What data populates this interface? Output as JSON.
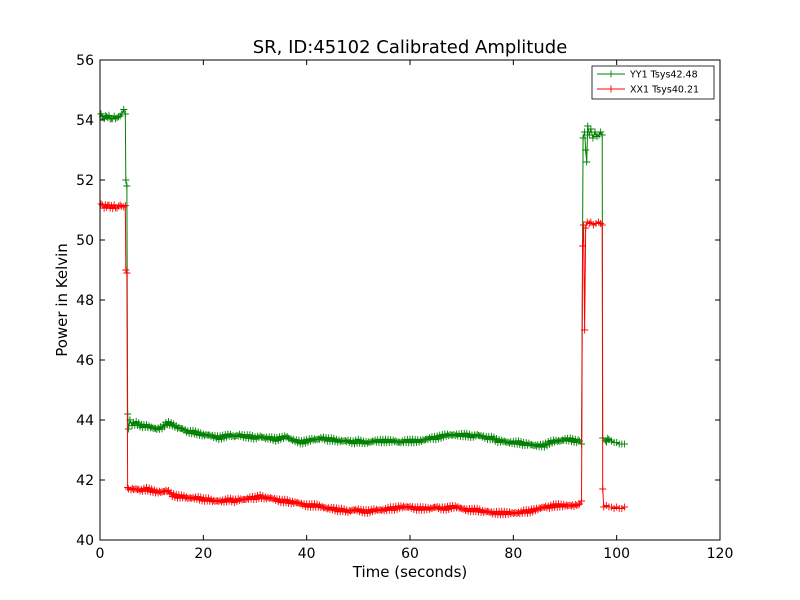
{
  "chart_data": {
    "type": "line",
    "title": "SR, ID:45102 Calibrated Amplitude",
    "xlabel": "Time (seconds)",
    "ylabel": "Power in Kelvin",
    "xlim": [
      0,
      120
    ],
    "ylim": [
      40,
      56
    ],
    "xticks": [
      0,
      20,
      40,
      60,
      80,
      100,
      120
    ],
    "yticks": [
      40,
      42,
      44,
      46,
      48,
      50,
      52,
      54,
      56
    ],
    "grid": false,
    "legend_position": "top-right",
    "marker": "plus",
    "series": [
      {
        "name": "YY1 Tsys42.48",
        "color": "#008000",
        "points": [
          [
            0.2,
            54.15
          ],
          [
            0.8,
            54.1
          ],
          [
            1.5,
            54.12
          ],
          [
            2.2,
            54.05
          ],
          [
            3.0,
            54.1
          ],
          [
            3.6,
            54.05
          ],
          [
            4.2,
            54.2
          ],
          [
            4.6,
            54.35
          ],
          [
            4.9,
            54.2
          ],
          [
            5.0,
            52.0
          ],
          [
            5.2,
            51.8
          ],
          [
            5.35,
            44.2
          ],
          [
            5.5,
            43.7
          ],
          [
            5.8,
            44.0
          ],
          [
            6.2,
            43.85
          ],
          [
            7,
            43.9
          ],
          [
            8,
            43.8
          ],
          [
            9,
            43.8
          ],
          [
            10,
            43.75
          ],
          [
            11,
            43.7
          ],
          [
            12,
            43.75
          ],
          [
            13,
            43.9
          ],
          [
            14,
            43.85
          ],
          [
            15,
            43.75
          ],
          [
            16,
            43.7
          ],
          [
            17,
            43.6
          ],
          [
            18,
            43.6
          ],
          [
            19,
            43.55
          ],
          [
            20,
            43.5
          ],
          [
            21,
            43.5
          ],
          [
            22,
            43.45
          ],
          [
            23,
            43.4
          ],
          [
            24,
            43.45
          ],
          [
            25,
            43.5
          ],
          [
            26,
            43.45
          ],
          [
            27,
            43.5
          ],
          [
            28,
            43.45
          ],
          [
            29,
            43.45
          ],
          [
            30,
            43.4
          ],
          [
            31,
            43.45
          ],
          [
            32,
            43.4
          ],
          [
            33,
            43.4
          ],
          [
            34,
            43.35
          ],
          [
            35,
            43.4
          ],
          [
            36,
            43.45
          ],
          [
            37,
            43.35
          ],
          [
            38,
            43.3
          ],
          [
            39,
            43.25
          ],
          [
            40,
            43.3
          ],
          [
            41,
            43.35
          ],
          [
            42,
            43.35
          ],
          [
            43,
            43.4
          ],
          [
            44,
            43.35
          ],
          [
            45,
            43.35
          ],
          [
            46,
            43.3
          ],
          [
            47,
            43.3
          ],
          [
            48,
            43.3
          ],
          [
            49,
            43.25
          ],
          [
            50,
            43.3
          ],
          [
            51,
            43.25
          ],
          [
            52,
            43.25
          ],
          [
            53,
            43.3
          ],
          [
            54,
            43.3
          ],
          [
            55,
            43.3
          ],
          [
            56,
            43.3
          ],
          [
            57,
            43.3
          ],
          [
            58,
            43.25
          ],
          [
            59,
            43.3
          ],
          [
            60,
            43.3
          ],
          [
            61,
            43.3
          ],
          [
            62,
            43.3
          ],
          [
            63,
            43.35
          ],
          [
            64,
            43.4
          ],
          [
            65,
            43.4
          ],
          [
            66,
            43.45
          ],
          [
            67,
            43.5
          ],
          [
            68,
            43.5
          ],
          [
            69,
            43.5
          ],
          [
            70,
            43.5
          ],
          [
            71,
            43.5
          ],
          [
            72,
            43.45
          ],
          [
            73,
            43.5
          ],
          [
            74,
            43.45
          ],
          [
            75,
            43.4
          ],
          [
            76,
            43.4
          ],
          [
            77,
            43.3
          ],
          [
            78,
            43.3
          ],
          [
            79,
            43.25
          ],
          [
            80,
            43.25
          ],
          [
            81,
            43.25
          ],
          [
            82,
            43.2
          ],
          [
            83,
            43.2
          ],
          [
            84,
            43.15
          ],
          [
            85,
            43.15
          ],
          [
            86,
            43.15
          ],
          [
            87,
            43.25
          ],
          [
            88,
            43.3
          ],
          [
            89,
            43.3
          ],
          [
            90,
            43.35
          ],
          [
            91,
            43.35
          ],
          [
            92,
            43.3
          ],
          [
            92.8,
            43.3
          ],
          [
            93.2,
            43.2
          ],
          [
            93.5,
            53.4
          ],
          [
            93.8,
            53.6
          ],
          [
            94.0,
            53.0
          ],
          [
            94.2,
            52.6
          ],
          [
            94.4,
            53.8
          ],
          [
            94.7,
            53.5
          ],
          [
            95,
            53.7
          ],
          [
            95.4,
            53.4
          ],
          [
            95.8,
            53.6
          ],
          [
            96.2,
            53.45
          ],
          [
            96.6,
            53.5
          ],
          [
            96.9,
            53.6
          ],
          [
            97.2,
            53.5
          ],
          [
            97.3,
            43.4
          ],
          [
            97.8,
            43.3
          ],
          [
            98.5,
            43.35
          ],
          [
            99,
            43.3
          ],
          [
            99.5,
            43.25
          ],
          [
            100,
            43.25
          ],
          [
            100.5,
            43.2
          ],
          [
            101,
            43.2
          ],
          [
            101.5,
            43.2
          ]
        ]
      },
      {
        "name": "XX1 Tsys40.21",
        "color": "#ff0000",
        "points": [
          [
            0.2,
            51.15
          ],
          [
            0.8,
            51.1
          ],
          [
            1.5,
            51.15
          ],
          [
            2.2,
            51.1
          ],
          [
            3.0,
            51.12
          ],
          [
            3.6,
            51.1
          ],
          [
            4.2,
            51.12
          ],
          [
            4.6,
            51.1
          ],
          [
            4.9,
            51.15
          ],
          [
            5.0,
            49.0
          ],
          [
            5.2,
            48.9
          ],
          [
            5.35,
            41.75
          ],
          [
            5.5,
            41.7
          ],
          [
            6,
            41.7
          ],
          [
            7,
            41.7
          ],
          [
            8,
            41.65
          ],
          [
            9,
            41.7
          ],
          [
            10,
            41.65
          ],
          [
            11,
            41.6
          ],
          [
            12,
            41.6
          ],
          [
            13,
            41.65
          ],
          [
            14,
            41.5
          ],
          [
            15,
            41.45
          ],
          [
            16,
            41.45
          ],
          [
            17,
            41.4
          ],
          [
            18,
            41.4
          ],
          [
            19,
            41.4
          ],
          [
            20,
            41.35
          ],
          [
            21,
            41.35
          ],
          [
            22,
            41.3
          ],
          [
            23,
            41.3
          ],
          [
            24,
            41.3
          ],
          [
            25,
            41.35
          ],
          [
            26,
            41.3
          ],
          [
            27,
            41.35
          ],
          [
            28,
            41.35
          ],
          [
            29,
            41.4
          ],
          [
            30,
            41.4
          ],
          [
            31,
            41.45
          ],
          [
            32,
            41.4
          ],
          [
            33,
            41.4
          ],
          [
            34,
            41.35
          ],
          [
            35,
            41.3
          ],
          [
            36,
            41.3
          ],
          [
            37,
            41.25
          ],
          [
            38,
            41.25
          ],
          [
            39,
            41.2
          ],
          [
            40,
            41.15
          ],
          [
            41,
            41.15
          ],
          [
            42,
            41.15
          ],
          [
            43,
            41.1
          ],
          [
            44,
            41.05
          ],
          [
            45,
            41.05
          ],
          [
            46,
            41.0
          ],
          [
            47,
            41.0
          ],
          [
            48,
            40.95
          ],
          [
            49,
            41.0
          ],
          [
            50,
            41.0
          ],
          [
            51,
            40.95
          ],
          [
            52,
            40.95
          ],
          [
            53,
            41.0
          ],
          [
            54,
            41.0
          ],
          [
            55,
            41.0
          ],
          [
            56,
            41.05
          ],
          [
            57,
            41.05
          ],
          [
            58,
            41.1
          ],
          [
            59,
            41.1
          ],
          [
            60,
            41.1
          ],
          [
            61,
            41.05
          ],
          [
            62,
            41.05
          ],
          [
            63,
            41.05
          ],
          [
            64,
            41.05
          ],
          [
            65,
            41.1
          ],
          [
            66,
            41.05
          ],
          [
            67,
            41.05
          ],
          [
            68,
            41.1
          ],
          [
            69,
            41.1
          ],
          [
            70,
            41.05
          ],
          [
            71,
            41.0
          ],
          [
            72,
            41.0
          ],
          [
            73,
            41.0
          ],
          [
            74,
            40.95
          ],
          [
            75,
            40.95
          ],
          [
            76,
            40.9
          ],
          [
            77,
            40.9
          ],
          [
            78,
            40.9
          ],
          [
            79,
            40.9
          ],
          [
            80,
            40.9
          ],
          [
            81,
            40.9
          ],
          [
            82,
            40.95
          ],
          [
            83,
            40.95
          ],
          [
            84,
            41.0
          ],
          [
            85,
            41.05
          ],
          [
            86,
            41.1
          ],
          [
            87,
            41.1
          ],
          [
            88,
            41.15
          ],
          [
            89,
            41.15
          ],
          [
            90,
            41.15
          ],
          [
            91,
            41.15
          ],
          [
            92,
            41.15
          ],
          [
            92.8,
            41.2
          ],
          [
            93.2,
            41.3
          ],
          [
            93.4,
            49.8
          ],
          [
            93.6,
            50.5
          ],
          [
            93.8,
            47.0
          ],
          [
            94.0,
            50.4
          ],
          [
            94.3,
            50.6
          ],
          [
            94.7,
            50.55
          ],
          [
            95,
            50.6
          ],
          [
            95.5,
            50.5
          ],
          [
            96,
            50.55
          ],
          [
            96.5,
            50.6
          ],
          [
            96.9,
            50.55
          ],
          [
            97.2,
            50.5
          ],
          [
            97.3,
            41.7
          ],
          [
            97.5,
            41.1
          ],
          [
            98,
            41.15
          ],
          [
            98.5,
            41.1
          ],
          [
            99,
            41.1
          ],
          [
            99.5,
            41.05
          ],
          [
            100,
            41.1
          ],
          [
            100.5,
            41.05
          ],
          [
            101,
            41.05
          ],
          [
            101.5,
            41.1
          ]
        ]
      }
    ]
  }
}
